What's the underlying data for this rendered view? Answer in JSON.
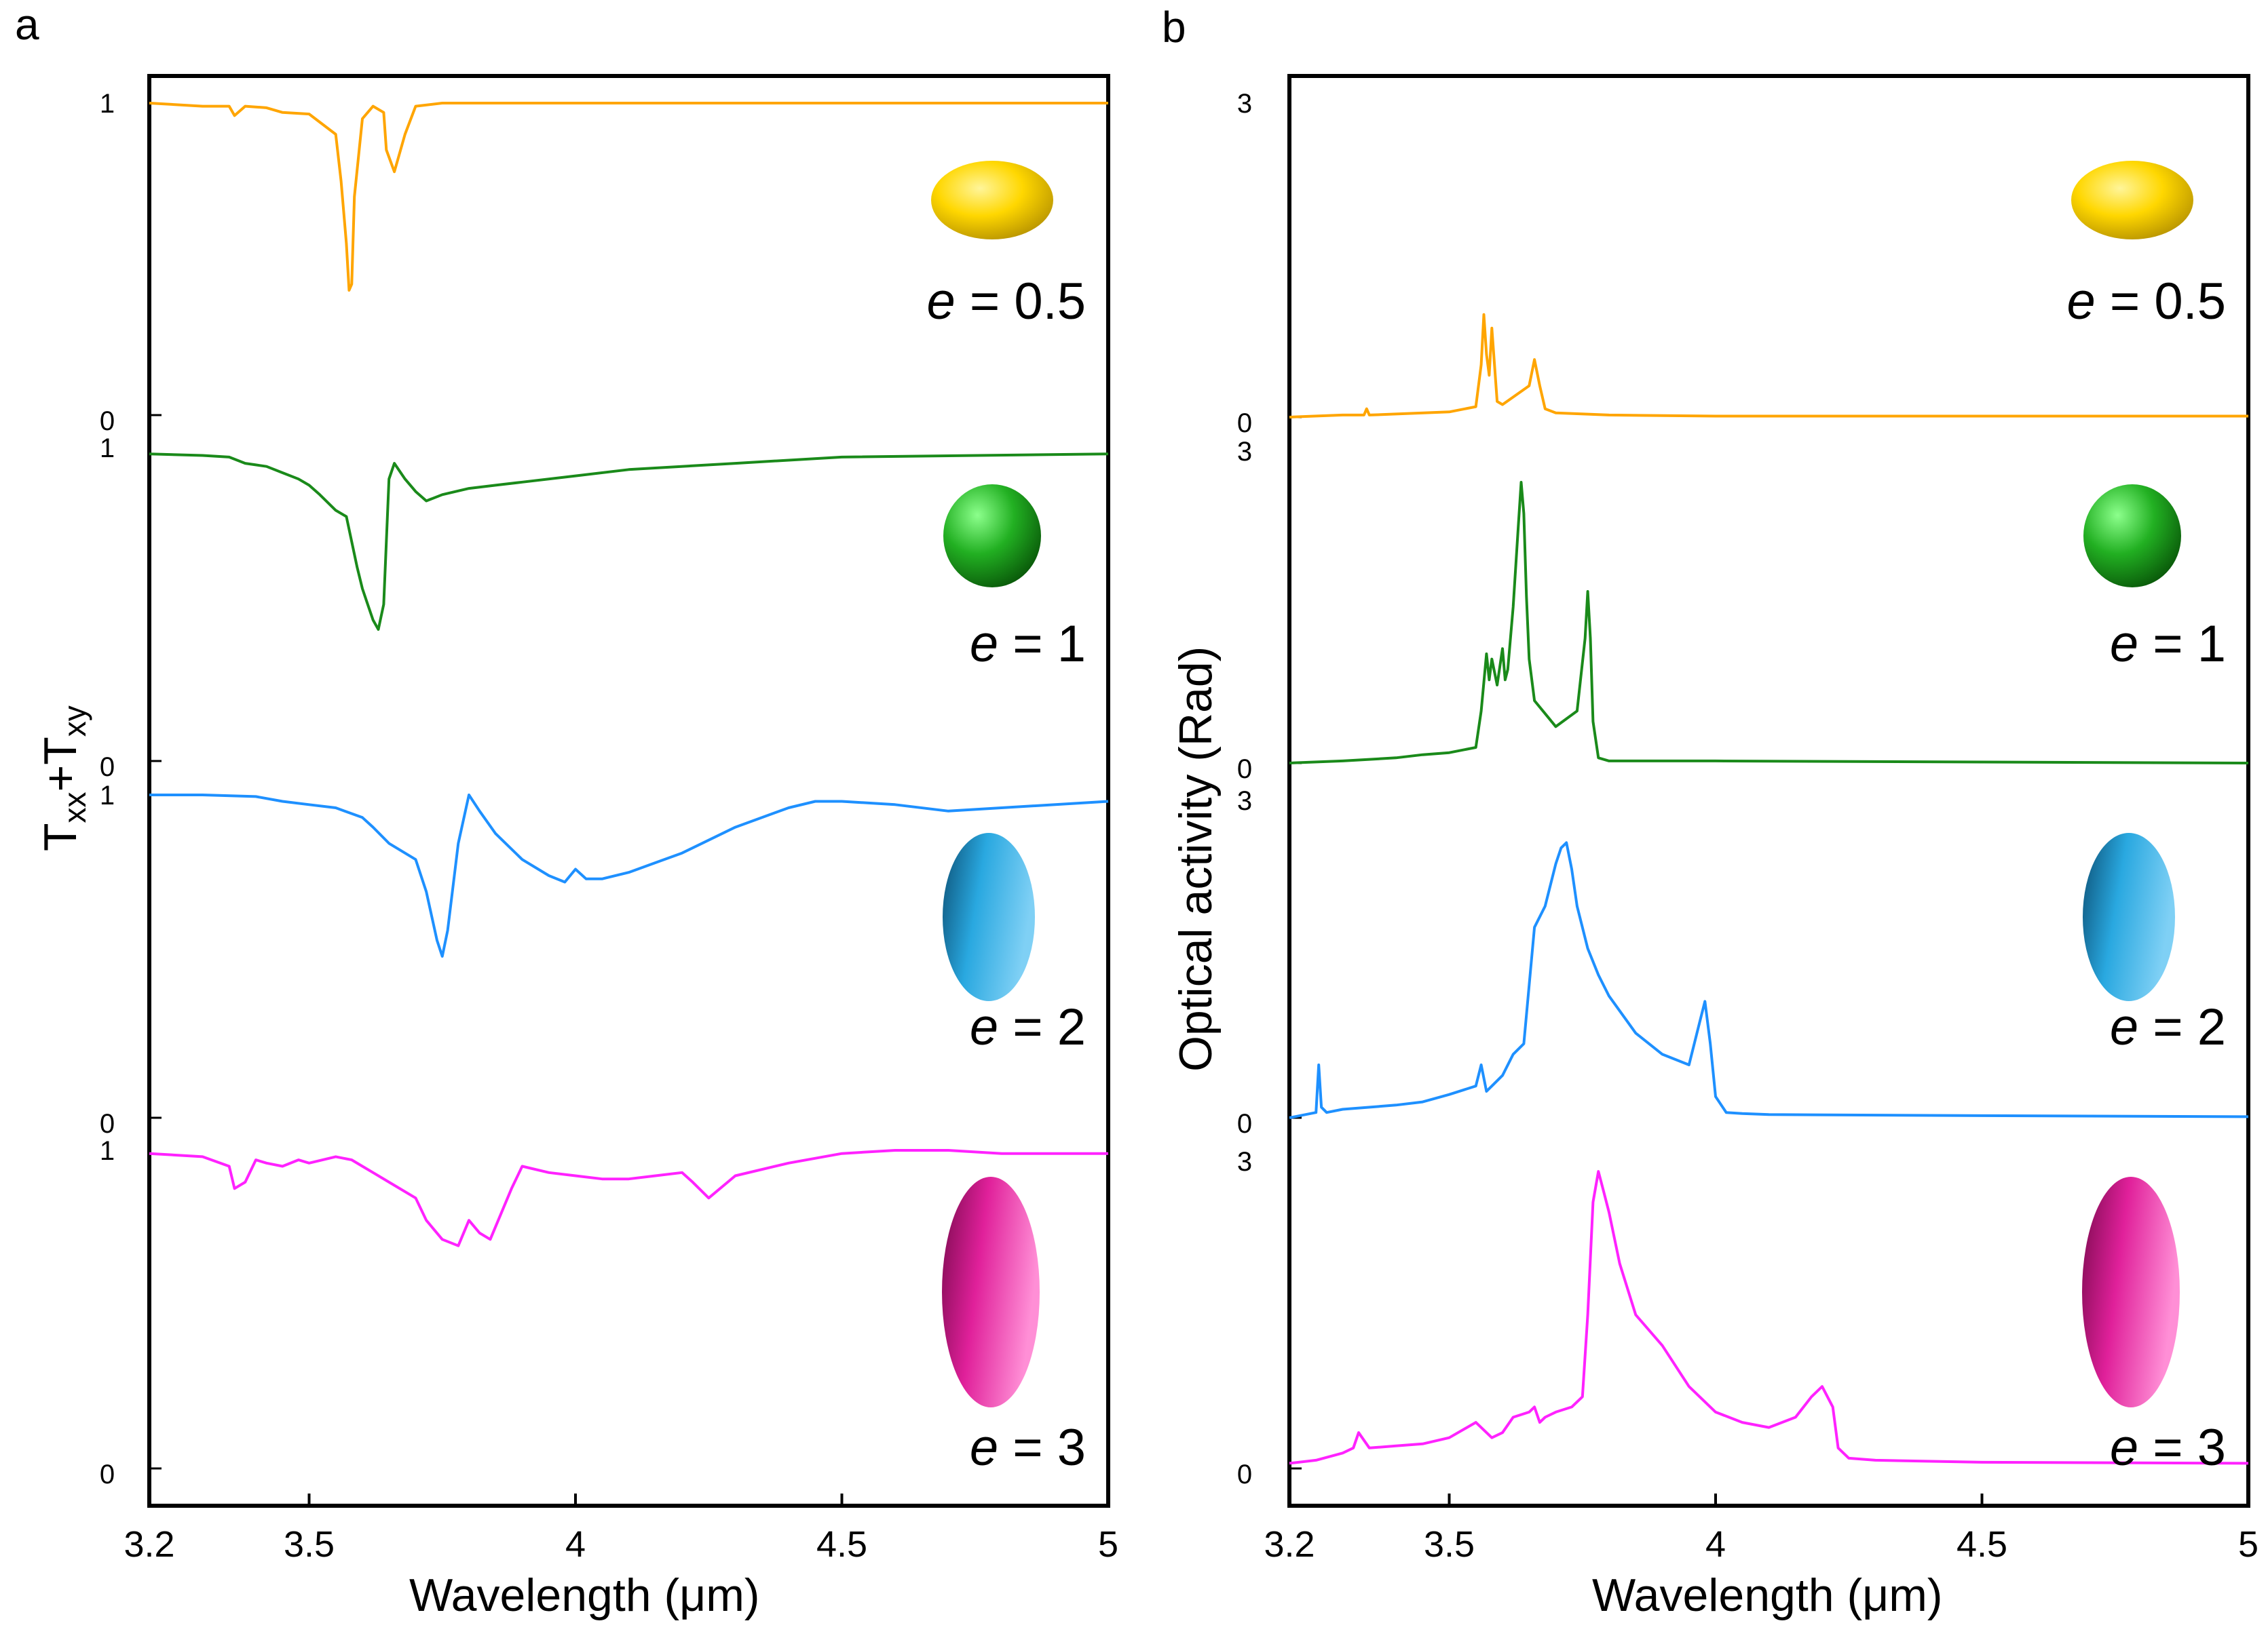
{
  "chart_data": [
    {
      "type": "line",
      "panel_label": "a",
      "xlabel": "Wavelength (μm)",
      "ylabel_main": "T",
      "ylabel_sub1": "xx",
      "ylabel_plus": "+T",
      "ylabel_sub2": "xy",
      "xlim": [
        3.2,
        5
      ],
      "xticks": [
        "3.2",
        "3.5",
        "4",
        "4.5",
        "5"
      ],
      "ylim": [
        0,
        1
      ],
      "yticks": [
        "0",
        "1"
      ],
      "series": [
        {
          "name": "e = 0.5",
          "e_prefix": "e",
          "e_suffix": " = 0.5",
          "color": "#FFA500",
          "shape_color": "#FFD700",
          "shape": "oblate-spheroid",
          "x": [
            3.2,
            3.3,
            3.35,
            3.36,
            3.38,
            3.42,
            3.45,
            3.5,
            3.55,
            3.56,
            3.57,
            3.575,
            3.58,
            3.585,
            3.6,
            3.62,
            3.64,
            3.645,
            3.66,
            3.68,
            3.7,
            3.75,
            3.8,
            4,
            4.5,
            5
          ],
          "y": [
            1,
            0.99,
            0.99,
            0.96,
            0.99,
            0.985,
            0.97,
            0.965,
            0.9,
            0.75,
            0.55,
            0.4,
            0.42,
            0.7,
            0.95,
            0.99,
            0.97,
            0.85,
            0.78,
            0.9,
            0.99,
            1,
            1,
            1,
            1,
            1
          ]
        },
        {
          "name": "e = 1",
          "e_prefix": "e",
          "e_suffix": " = 1",
          "color": "#1A8A1A",
          "shape_color": "#22B022",
          "shape": "sphere",
          "x": [
            3.2,
            3.3,
            3.35,
            3.38,
            3.4,
            3.42,
            3.45,
            3.48,
            3.5,
            3.52,
            3.55,
            3.57,
            3.59,
            3.6,
            3.61,
            3.62,
            3.63,
            3.64,
            3.645,
            3.65,
            3.66,
            3.68,
            3.7,
            3.72,
            3.75,
            3.8,
            3.85,
            3.9,
            4,
            4.1,
            4.3,
            4.5,
            5
          ],
          "y": [
            0.98,
            0.975,
            0.97,
            0.95,
            0.945,
            0.94,
            0.92,
            0.9,
            0.88,
            0.85,
            0.8,
            0.78,
            0.62,
            0.55,
            0.5,
            0.45,
            0.42,
            0.5,
            0.7,
            0.9,
            0.95,
            0.9,
            0.86,
            0.83,
            0.85,
            0.87,
            0.88,
            0.89,
            0.91,
            0.93,
            0.95,
            0.97,
            0.98
          ],
          "extra": [
            {
              "x": 3.73,
              "y": 0.8
            },
            {
              "x": 3.75,
              "y": 0.83
            },
            {
              "x": 3.77,
              "y": 0.86
            },
            {
              "x": 3.78,
              "y": 0.82
            },
            {
              "x": 3.8,
              "y": 0.81
            }
          ]
        },
        {
          "name": "e = 2",
          "e_prefix": "e",
          "e_suffix": " = 2",
          "color": "#1E90FF",
          "shape_color": "#29A8E0",
          "shape": "prolate-spheroid",
          "x": [
            3.2,
            3.3,
            3.4,
            3.45,
            3.5,
            3.55,
            3.6,
            3.62,
            3.65,
            3.7,
            3.72,
            3.74,
            3.75,
            3.76,
            3.78,
            3.8,
            3.82,
            3.85,
            3.9,
            3.95,
            3.98,
            4,
            4.02,
            4.05,
            4.1,
            4.2,
            4.3,
            4.4,
            4.45,
            4.5,
            4.6,
            4.7,
            5
          ],
          "y": [
            1,
            1,
            0.995,
            0.98,
            0.97,
            0.96,
            0.93,
            0.9,
            0.85,
            0.8,
            0.7,
            0.55,
            0.5,
            0.58,
            0.85,
            1,
            0.95,
            0.88,
            0.8,
            0.75,
            0.73,
            0.77,
            0.74,
            0.74,
            0.76,
            0.82,
            0.9,
            0.96,
            0.98,
            0.98,
            0.97,
            0.95,
            0.98
          ]
        },
        {
          "name": "e = 3",
          "e_prefix": "e",
          "e_suffix": " = 3",
          "color": "#FF22FF",
          "shape_color": "#E0209A",
          "shape": "elongated-spheroid",
          "x": [
            3.2,
            3.3,
            3.35,
            3.36,
            3.38,
            3.4,
            3.42,
            3.45,
            3.48,
            3.5,
            3.55,
            3.58,
            3.6,
            3.62,
            3.65,
            3.7,
            3.72,
            3.75,
            3.78,
            3.8,
            3.82,
            3.84,
            3.86,
            3.88,
            3.9,
            3.95,
            4,
            4.05,
            4.1,
            4.15,
            4.2,
            4.22,
            4.25,
            4.3,
            4.4,
            4.5,
            4.6,
            4.7,
            4.8,
            5
          ],
          "y": [
            0.99,
            0.98,
            0.95,
            0.88,
            0.9,
            0.97,
            0.96,
            0.95,
            0.97,
            0.96,
            0.98,
            0.97,
            0.95,
            0.93,
            0.9,
            0.85,
            0.78,
            0.72,
            0.7,
            0.78,
            0.74,
            0.72,
            0.8,
            0.88,
            0.95,
            0.93,
            0.92,
            0.91,
            0.91,
            0.92,
            0.93,
            0.9,
            0.85,
            0.92,
            0.96,
            0.99,
            1,
            1,
            0.99,
            0.99
          ]
        }
      ]
    },
    {
      "type": "line",
      "panel_label": "b",
      "xlabel": "Wavelength (μm)",
      "ylabel": "Optical activity (Rad)",
      "xlim": [
        3.2,
        5
      ],
      "xticks": [
        "3.2",
        "3.5",
        "4",
        "4.5",
        "5"
      ],
      "ylim": [
        0,
        3
      ],
      "yticks": [
        "0",
        "3"
      ],
      "series": [
        {
          "name": "e = 0.5",
          "e_prefix": "e",
          "e_suffix": " = 0.5",
          "color": "#FFA500",
          "shape_color": "#FFD700",
          "shape": "oblate-spheroid",
          "x": [
            3.2,
            3.3,
            3.34,
            3.345,
            3.35,
            3.4,
            3.5,
            3.55,
            3.56,
            3.565,
            3.57,
            3.575,
            3.58,
            3.585,
            3.59,
            3.6,
            3.65,
            3.66,
            3.67,
            3.68,
            3.7,
            3.8,
            4,
            4.5,
            5
          ],
          "y": [
            0,
            0.02,
            0.02,
            0.08,
            0.02,
            0.03,
            0.05,
            0.1,
            0.5,
            0.98,
            0.6,
            0.4,
            0.85,
            0.5,
            0.15,
            0.12,
            0.3,
            0.55,
            0.3,
            0.08,
            0.04,
            0.02,
            0.01,
            0.01,
            0.01
          ]
        },
        {
          "name": "e = 1",
          "e_prefix": "e",
          "e_suffix": " = 1",
          "color": "#1A8A1A",
          "shape_color": "#22B022",
          "shape": "sphere",
          "x": [
            3.2,
            3.3,
            3.4,
            3.45,
            3.5,
            3.55,
            3.56,
            3.57,
            3.575,
            3.58,
            3.59,
            3.6,
            3.605,
            3.61,
            3.62,
            3.63,
            3.635,
            3.64,
            3.645,
            3.65,
            3.66,
            3.7,
            3.74,
            3.755,
            3.76,
            3.765,
            3.77,
            3.78,
            3.8,
            4,
            4.5,
            5
          ],
          "y": [
            0,
            0.02,
            0.05,
            0.08,
            0.1,
            0.15,
            0.5,
            1.05,
            0.8,
            1,
            0.75,
            1.1,
            0.8,
            0.9,
            1.5,
            2.3,
            2.7,
            2.4,
            1.6,
            1,
            0.6,
            0.35,
            0.5,
            1.2,
            1.65,
            1.2,
            0.4,
            0.05,
            0.02,
            0.02,
            0.01,
            0
          ]
        },
        {
          "name": "e = 2",
          "e_prefix": "e",
          "e_suffix": " = 2",
          "color": "#1E90FF",
          "shape_color": "#29A8E0",
          "shape": "prolate-spheroid",
          "x": [
            3.2,
            3.25,
            3.255,
            3.26,
            3.27,
            3.3,
            3.4,
            3.45,
            3.5,
            3.55,
            3.56,
            3.57,
            3.58,
            3.6,
            3.62,
            3.64,
            3.66,
            3.68,
            3.7,
            3.71,
            3.72,
            3.73,
            3.74,
            3.76,
            3.78,
            3.8,
            3.85,
            3.9,
            3.95,
            3.97,
            3.98,
            3.99,
            4,
            4.02,
            4.05,
            4.1,
            4.5,
            5
          ],
          "y": [
            0,
            0.05,
            0.5,
            0.1,
            0.05,
            0.08,
            0.12,
            0.15,
            0.22,
            0.3,
            0.5,
            0.25,
            0.3,
            0.4,
            0.6,
            0.7,
            1.8,
            2.0,
            2.4,
            2.55,
            2.6,
            2.35,
            2.0,
            1.6,
            1.35,
            1.15,
            0.8,
            0.6,
            0.5,
            0.9,
            1.1,
            0.7,
            0.2,
            0.05,
            0.04,
            0.03,
            0.02,
            0.01
          ]
        },
        {
          "name": "e = 3",
          "e_prefix": "e",
          "e_suffix": " = 3",
          "color": "#FF22FF",
          "shape_color": "#E0209A",
          "shape": "elongated-spheroid",
          "x": [
            3.2,
            3.25,
            3.3,
            3.32,
            3.33,
            3.35,
            3.4,
            3.45,
            3.5,
            3.55,
            3.58,
            3.6,
            3.62,
            3.65,
            3.66,
            3.67,
            3.68,
            3.7,
            3.73,
            3.75,
            3.76,
            3.77,
            3.78,
            3.79,
            3.8,
            3.82,
            3.85,
            3.9,
            3.95,
            4,
            4.05,
            4.1,
            4.15,
            4.18,
            4.2,
            4.22,
            4.23,
            4.25,
            4.3,
            4.5,
            5
          ],
          "y": [
            0.05,
            0.08,
            0.15,
            0.2,
            0.35,
            0.2,
            0.22,
            0.24,
            0.3,
            0.45,
            0.3,
            0.35,
            0.5,
            0.55,
            0.6,
            0.45,
            0.5,
            0.55,
            0.6,
            0.7,
            1.5,
            2.6,
            2.9,
            2.7,
            2.5,
            2.0,
            1.5,
            1.2,
            0.8,
            0.55,
            0.45,
            0.4,
            0.5,
            0.7,
            0.8,
            0.6,
            0.2,
            0.1,
            0.08,
            0.06,
            0.05
          ]
        }
      ]
    }
  ]
}
